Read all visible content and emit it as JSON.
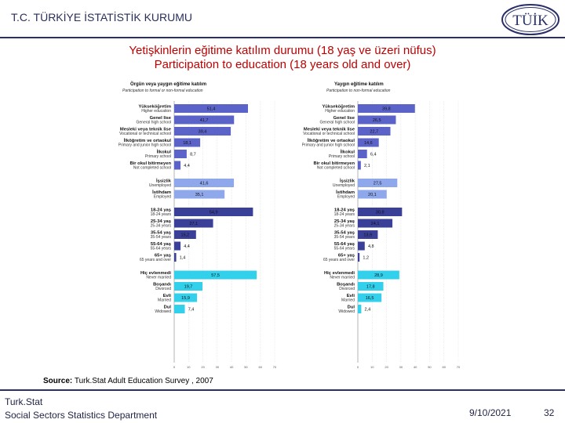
{
  "header": {
    "org_title": "T.C. TÜRKİYE İSTATİSTİK KURUMU",
    "logo_text": "TÜİK"
  },
  "slide": {
    "title_tr": "Yetişkinlerin eğitime katılım durumu (18 yaş ve üzeri nüfus)",
    "title_en": "Participation to education (18 years old and over)"
  },
  "chart_data": [
    {
      "type": "bar",
      "orientation": "horizontal",
      "title": "Örgün veya yaygın eğitime katılım",
      "subtitle": "Participation to formal or non-formal education",
      "xlim": [
        0,
        70
      ],
      "x_ticks": [
        "0",
        "10",
        "20",
        "30",
        "40",
        "50",
        "60",
        "70"
      ],
      "categories": [
        {
          "tr": "Yükseköğretim",
          "en": "Higher education",
          "value": 51.4,
          "display": "51,4",
          "group": "education"
        },
        {
          "tr": "Genel lise",
          "en": "General high school",
          "value": 41.7,
          "display": "41,7",
          "group": "education"
        },
        {
          "tr": "Mesleki veya teknik lise",
          "en": "Vocational or technical school",
          "value": 39.4,
          "display": "39,4",
          "group": "education"
        },
        {
          "tr": "İlköğretim ve ortaokul",
          "en": "Primary and junior high school",
          "value": 18.1,
          "display": "18,1",
          "group": "education"
        },
        {
          "tr": "İlkokul",
          "en": "Primary school",
          "value": 8.7,
          "display": "8,7",
          "group": "education"
        },
        {
          "tr": "Bir okul bitirmeyen",
          "en": "Not completed school",
          "value": 4.4,
          "display": "4,4",
          "group": "education"
        },
        {
          "tr": "İşsizlik",
          "en": "Unemployed",
          "value": 41.6,
          "display": "41,6",
          "group": "employment"
        },
        {
          "tr": "İstihdam",
          "en": "Employed",
          "value": 35.1,
          "display": "35,1",
          "group": "employment"
        },
        {
          "tr": "18-24 yaş",
          "en": "18-24 years",
          "value": 54.9,
          "display": "54,9",
          "group": "age"
        },
        {
          "tr": "25-34 yaş",
          "en": "25-34 years",
          "value": 27.1,
          "display": "27,1",
          "group": "age"
        },
        {
          "tr": "35-54 yaş",
          "en": "35-54 years",
          "value": 15.2,
          "display": "15,2",
          "group": "age"
        },
        {
          "tr": "55-64 yaş",
          "en": "55-64 years",
          "value": 4.4,
          "display": "4,4",
          "group": "age"
        },
        {
          "tr": "65+ yaş",
          "en": "65 years and over",
          "value": 1.4,
          "display": "1,4",
          "group": "age"
        },
        {
          "tr": "Hiç evlenmedi",
          "en": "Never married",
          "value": 57.5,
          "display": "57,5",
          "group": "marital"
        },
        {
          "tr": "Boşandı",
          "en": "Divorced",
          "value": 19.7,
          "display": "19,7",
          "group": "marital"
        },
        {
          "tr": "Evli",
          "en": "Married",
          "value": 15.9,
          "display": "15,9",
          "group": "marital"
        },
        {
          "tr": "Dul",
          "en": "Widowed",
          "value": 7.4,
          "display": "7,4",
          "group": "marital"
        }
      ]
    },
    {
      "type": "bar",
      "orientation": "horizontal",
      "title": "Yaygın eğitime katılım",
      "subtitle": "Participation to non-formal education",
      "xlim": [
        0,
        70
      ],
      "x_ticks": [
        "0",
        "10",
        "20",
        "30",
        "40",
        "50",
        "60",
        "70"
      ],
      "categories": [
        {
          "tr": "Yükseköğretim",
          "en": "Higher education",
          "value": 39.8,
          "display": "39,8",
          "group": "education"
        },
        {
          "tr": "Genel lise",
          "en": "General high school",
          "value": 26.5,
          "display": "26,5",
          "group": "education"
        },
        {
          "tr": "Mesleki veya teknik lise",
          "en": "Vocational or technical school",
          "value": 22.7,
          "display": "22,7",
          "group": "education"
        },
        {
          "tr": "İlköğretim ve ortaokul",
          "en": "Primary and junior high school",
          "value": 14.6,
          "display": "14,6",
          "group": "education"
        },
        {
          "tr": "İlkokul",
          "en": "Primary school",
          "value": 6.4,
          "display": "6,4",
          "group": "education"
        },
        {
          "tr": "Bir okul bitirmeyen",
          "en": "Not completed school",
          "value": 2.1,
          "display": "2,1",
          "group": "education"
        },
        {
          "tr": "İşsizlik",
          "en": "Unemployed",
          "value": 27.5,
          "display": "27,5",
          "group": "employment"
        },
        {
          "tr": "İstihdam",
          "en": "Employed",
          "value": 20.1,
          "display": "20,1",
          "group": "employment"
        },
        {
          "tr": "18-24 yaş",
          "en": "18-24 years",
          "value": 30.8,
          "display": "30,8",
          "group": "age"
        },
        {
          "tr": "25-34 yaş",
          "en": "25-34 years",
          "value": 24.1,
          "display": "24,1",
          "group": "age"
        },
        {
          "tr": "35-54 yaş",
          "en": "35-54 years",
          "value": 13.9,
          "display": "13,9",
          "group": "age"
        },
        {
          "tr": "55-64 yaş",
          "en": "55-64 years",
          "value": 4.8,
          "display": "4,8",
          "group": "age"
        },
        {
          "tr": "65+ yaş",
          "en": "65 years and over",
          "value": 1.2,
          "display": "1,2",
          "group": "age"
        },
        {
          "tr": "Hiç evlenmedi",
          "en": "Never married",
          "value": 28.9,
          "display": "28,9",
          "group": "marital"
        },
        {
          "tr": "Boşandı",
          "en": "Divorced",
          "value": 17.8,
          "display": "17,8",
          "group": "marital"
        },
        {
          "tr": "Evli",
          "en": "Married",
          "value": 16.5,
          "display": "16,5",
          "group": "marital"
        },
        {
          "tr": "Dul",
          "en": "Widowed",
          "value": 2.4,
          "display": "2,4",
          "group": "marital"
        }
      ]
    }
  ],
  "colors": {
    "education": "#5b63c9",
    "employment": "#8fa8ec",
    "age": "#3a3f98",
    "marital": "#33d0ec",
    "title_red": "#c00000",
    "rule": "#2a2f6a"
  },
  "source": {
    "label": "Source:",
    "text": "Turk.Stat Adult Education Survey , 2007"
  },
  "footer": {
    "org_line1": "Turk.Stat",
    "org_line2": "Social Sectors Statistics Department",
    "date": "9/10/2021",
    "page": "32"
  }
}
